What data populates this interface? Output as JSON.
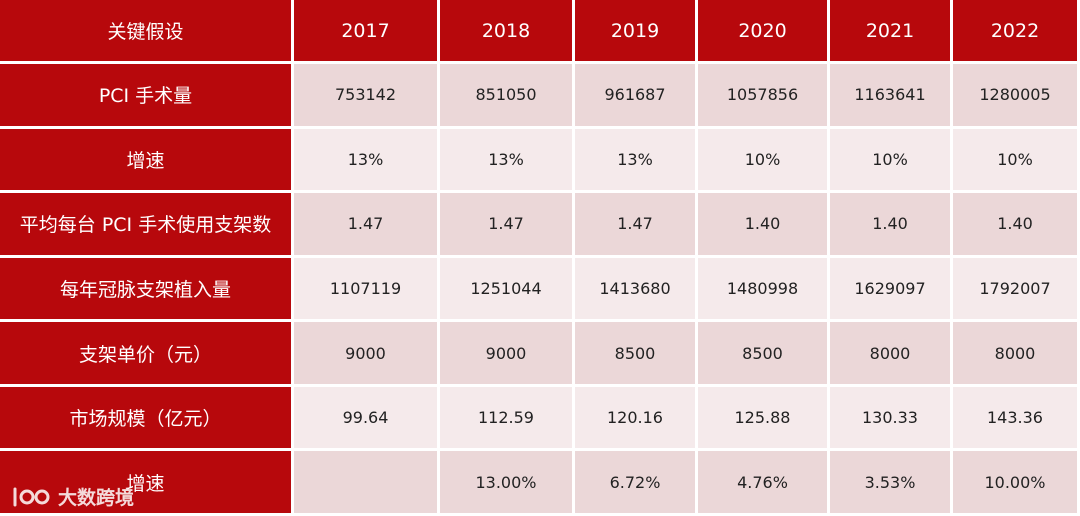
{
  "table": {
    "header": {
      "label": "关键假设",
      "years": [
        "2017",
        "2018",
        "2019",
        "2020",
        "2021",
        "2022"
      ]
    },
    "rows": [
      {
        "label": "PCI 手术量",
        "values": [
          "753142",
          "851050",
          "961687",
          "1057856",
          "1163641",
          "1280005"
        ]
      },
      {
        "label": "增速",
        "values": [
          "13%",
          "13%",
          "13%",
          "10%",
          "10%",
          "10%"
        ]
      },
      {
        "label": "平均每台 PCI 手术使用支架数",
        "values": [
          "1.47",
          "1.47",
          "1.47",
          "1.40",
          "1.40",
          "1.40"
        ]
      },
      {
        "label": "每年冠脉支架植入量",
        "values": [
          "1107119",
          "1251044",
          "1413680",
          "1480998",
          "1629097",
          "1792007"
        ]
      },
      {
        "label": "支架单价（元）",
        "values": [
          "9000",
          "9000",
          "8500",
          "8500",
          "8000",
          "8000"
        ]
      },
      {
        "label": "市场规模（亿元）",
        "values": [
          "99.64",
          "112.59",
          "120.16",
          "125.88",
          "130.33",
          "143.36"
        ]
      },
      {
        "label": "增速",
        "values": [
          "",
          "13.00%",
          "6.72%",
          "4.76%",
          "3.53%",
          "10.00%"
        ]
      }
    ]
  },
  "watermark": {
    "text": "大数跨境",
    "icon": "logo-icon"
  },
  "colors": {
    "header_bg": "#b7080c",
    "row_odd_bg": "#ebd7d8",
    "row_even_bg": "#f5eaeb"
  }
}
